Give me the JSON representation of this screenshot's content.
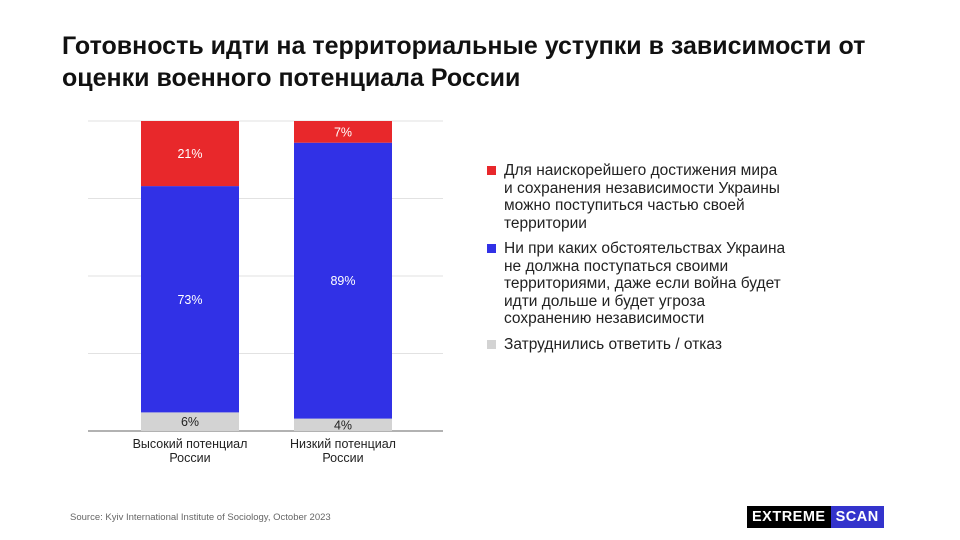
{
  "title": "Готовность идти на территориальные уступки в зависимости от оценки военного потенциала России",
  "source": "Source: Kyiv International Institute of Sociology, October 2023",
  "logo": {
    "part1": "EXTREME",
    "part2": "SCAN"
  },
  "colors": {
    "red": "#e8282b",
    "blue": "#3131e6",
    "gray": "#d3d3d3",
    "grid": "#e2e2e2"
  },
  "chart_data": {
    "type": "bar",
    "stacked": true,
    "categories": [
      "Высокий потенциал России",
      "Низкий потенциал России"
    ],
    "series": [
      {
        "name": "Затруднились ответить / отказ",
        "values": [
          6,
          4
        ],
        "labels": [
          "6%",
          "4%"
        ],
        "color": "#d3d3d3"
      },
      {
        "name": "Ни при каких обстоятельствах Украина не должна поступаться своими территориями, даже если война будет идти дольше и будет угроза сохранению независимости",
        "values": [
          73,
          89
        ],
        "labels": [
          "73%",
          "89%"
        ],
        "color": "#3131e6"
      },
      {
        "name": "Для наискорейшего достижения мира и сохранения независимости Украины можно поступиться частью своей территории",
        "values": [
          21,
          7
        ],
        "labels": [
          "21%",
          "7%"
        ],
        "color": "#e8282b"
      }
    ],
    "ylim": [
      0,
      100
    ],
    "grid": true,
    "legend_position": "right"
  },
  "legend": [
    {
      "label": "Для наискорейшего достижения мира и сохранения независимости Украины можно поступиться частью своей территории",
      "color": "#e8282b"
    },
    {
      "label": "Ни при каких обстоятельствах Украина не должна поступаться своими территориями, даже если война будет идти дольше и будет угроза сохранению независимости",
      "color": "#3131e6"
    },
    {
      "label": "Затруднились ответить / отказ",
      "color": "#d3d3d3"
    }
  ]
}
